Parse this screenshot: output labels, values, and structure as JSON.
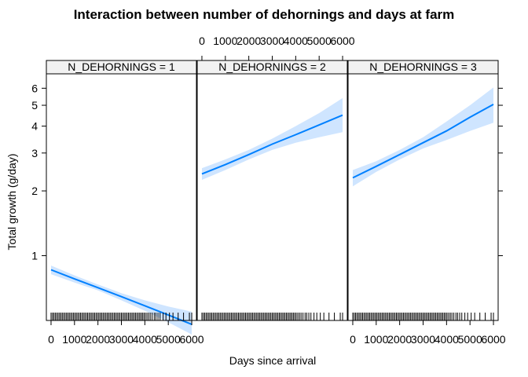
{
  "chart_data": {
    "type": "line",
    "title": "Interaction between number of dehornings and days at farm",
    "xlabel": "Days since arrival",
    "ylabel": "Total growth (g/day)",
    "xlim": [
      -200,
      6200
    ],
    "ylim": [
      0.5,
      7
    ],
    "y_scale": "log",
    "x_ticks": [
      0,
      1000,
      2000,
      3000,
      4000,
      5000,
      6000
    ],
    "x_tick_labels": [
      "0",
      "1000",
      "2000",
      "3000",
      "4000",
      "5000",
      "6000"
    ],
    "y_ticks": [
      1,
      2,
      3,
      4,
      5,
      6
    ],
    "y_tick_labels": [
      "1",
      "2",
      "3",
      "4",
      "5",
      "6"
    ],
    "colors": {
      "line": "#0080ff",
      "band": "#cfe5ff",
      "strip": "#f2f2f2"
    },
    "panels": [
      {
        "strip": "N_DEHORNINGS = 1",
        "x": [
          0,
          1000,
          2000,
          3000,
          4000,
          5000,
          6000
        ],
        "fit": [
          0.86,
          0.78,
          0.71,
          0.645,
          0.585,
          0.53,
          0.48
        ],
        "lower": [
          0.82,
          0.75,
          0.69,
          0.62,
          0.555,
          0.49,
          0.43
        ],
        "upper": [
          0.9,
          0.81,
          0.735,
          0.67,
          0.62,
          0.58,
          0.55
        ]
      },
      {
        "strip": "N_DEHORNINGS = 2",
        "x": [
          0,
          1000,
          2000,
          3000,
          4000,
          5000,
          6000
        ],
        "fit": [
          2.4,
          2.65,
          2.95,
          3.3,
          3.65,
          4.05,
          4.5
        ],
        "lower": [
          2.25,
          2.5,
          2.8,
          3.1,
          3.35,
          3.55,
          3.75
        ],
        "upper": [
          2.55,
          2.8,
          3.1,
          3.5,
          4.0,
          4.6,
          5.4
        ]
      },
      {
        "strip": "N_DEHORNINGS = 3",
        "x": [
          0,
          1000,
          2000,
          3000,
          4000,
          5000,
          6000
        ],
        "fit": [
          2.3,
          2.6,
          2.95,
          3.35,
          3.8,
          4.4,
          5.05
        ],
        "lower": [
          2.1,
          2.45,
          2.8,
          3.15,
          3.45,
          3.8,
          4.15
        ],
        "upper": [
          2.5,
          2.75,
          3.1,
          3.55,
          4.2,
          5.0,
          6.05
        ]
      }
    ],
    "rug": [
      0,
      60,
      120,
      180,
      240,
      300,
      360,
      420,
      480,
      540,
      600,
      660,
      720,
      780,
      840,
      900,
      960,
      1020,
      1080,
      1140,
      1200,
      1260,
      1320,
      1380,
      1440,
      1500,
      1560,
      1620,
      1680,
      1740,
      1800,
      1860,
      1920,
      1980,
      2040,
      2100,
      2160,
      2220,
      2280,
      2340,
      2400,
      2460,
      2520,
      2580,
      2640,
      2700,
      2760,
      2820,
      2880,
      2940,
      3000,
      3060,
      3120,
      3180,
      3240,
      3300,
      3360,
      3420,
      3480,
      3540,
      3600,
      3660,
      3720,
      3780,
      3840,
      3900,
      3960,
      4020,
      4090,
      4160,
      4230,
      4310,
      4400,
      4470,
      4560,
      4650,
      4780,
      4900,
      5050,
      5200,
      5420,
      5650,
      5900,
      6000
    ]
  }
}
